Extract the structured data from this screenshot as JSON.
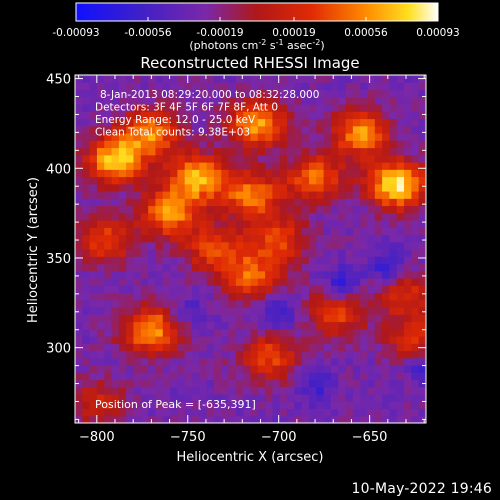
{
  "colorbar": {
    "tick_labels": [
      "-0.00093",
      "-0.00056",
      "-0.00019",
      "0.00019",
      "0.00056",
      "0.00093"
    ],
    "tick_values": [
      -0.00093,
      -0.00056,
      -0.00019,
      0.00019,
      0.00056,
      0.00093
    ],
    "range": [
      -0.00093,
      0.00093
    ],
    "unit_prefix": "(photons cm",
    "unit_exp1": "-2",
    "unit_mid": " s",
    "unit_exp2": "-1",
    "unit_mid2": " asec",
    "unit_exp3": "-2",
    "unit_suffix": ")"
  },
  "chart_data": {
    "type": "heatmap",
    "title": "Reconstructed RHESSI Image",
    "xlabel": "Heliocentric X (arcsec)",
    "ylabel": "Heliocentric Y (arcsec)",
    "xlim": [
      -812,
      -619
    ],
    "ylim": [
      258,
      452
    ],
    "x_ticks": [
      -800,
      -750,
      -700,
      -650
    ],
    "y_ticks": [
      300,
      350,
      400,
      450
    ],
    "annotations": [
      "8-Jan-2013 08:29:20.000 to 08:32:28.000",
      "Detectors: 3F 4F 5F 6F 7F 8F, Att 0",
      "Energy Range: 12.0 - 25.0 keV",
      "Clean     Total counts: 9.38E+03"
    ],
    "peak_label": "Position of Peak = [-635,391]",
    "peak": [
      -635,
      391
    ],
    "colorscale": "rainbow-hot (blue-purple-red-orange-yellow-white)",
    "sources": [
      {
        "x": -635,
        "y": 391,
        "peak": 1.0
      },
      {
        "x": -655,
        "y": 420,
        "peak": 0.75
      },
      {
        "x": -712,
        "y": 425,
        "peak": 0.8
      },
      {
        "x": -770,
        "y": 420,
        "peak": 0.7
      },
      {
        "x": -790,
        "y": 405,
        "peak": 0.9
      },
      {
        "x": -745,
        "y": 395,
        "peak": 0.85
      },
      {
        "x": -715,
        "y": 385,
        "peak": 0.7
      },
      {
        "x": -680,
        "y": 395,
        "peak": 0.65
      },
      {
        "x": -760,
        "y": 375,
        "peak": 0.75
      },
      {
        "x": -735,
        "y": 355,
        "peak": 0.55
      },
      {
        "x": -795,
        "y": 360,
        "peak": 0.55
      },
      {
        "x": -700,
        "y": 360,
        "peak": 0.55
      },
      {
        "x": -715,
        "y": 340,
        "peak": 0.6
      },
      {
        "x": -770,
        "y": 310,
        "peak": 0.8
      },
      {
        "x": -705,
        "y": 295,
        "peak": 0.55
      },
      {
        "x": -668,
        "y": 320,
        "peak": 0.55
      },
      {
        "x": -630,
        "y": 330,
        "peak": 0.45
      },
      {
        "x": -625,
        "y": 305,
        "peak": 0.45
      },
      {
        "x": -800,
        "y": 270,
        "peak": 0.4
      }
    ],
    "sinks": [
      {
        "x": -700,
        "y": 320,
        "depth": 0.4
      },
      {
        "x": -665,
        "y": 335,
        "depth": 0.5
      },
      {
        "x": -640,
        "y": 345,
        "depth": 0.45
      },
      {
        "x": -750,
        "y": 320,
        "depth": 0.3
      },
      {
        "x": -680,
        "y": 280,
        "depth": 0.35
      },
      {
        "x": -620,
        "y": 290,
        "depth": 0.35
      }
    ]
  },
  "footer": {
    "timestamp": "10-May-2022 19:46"
  }
}
